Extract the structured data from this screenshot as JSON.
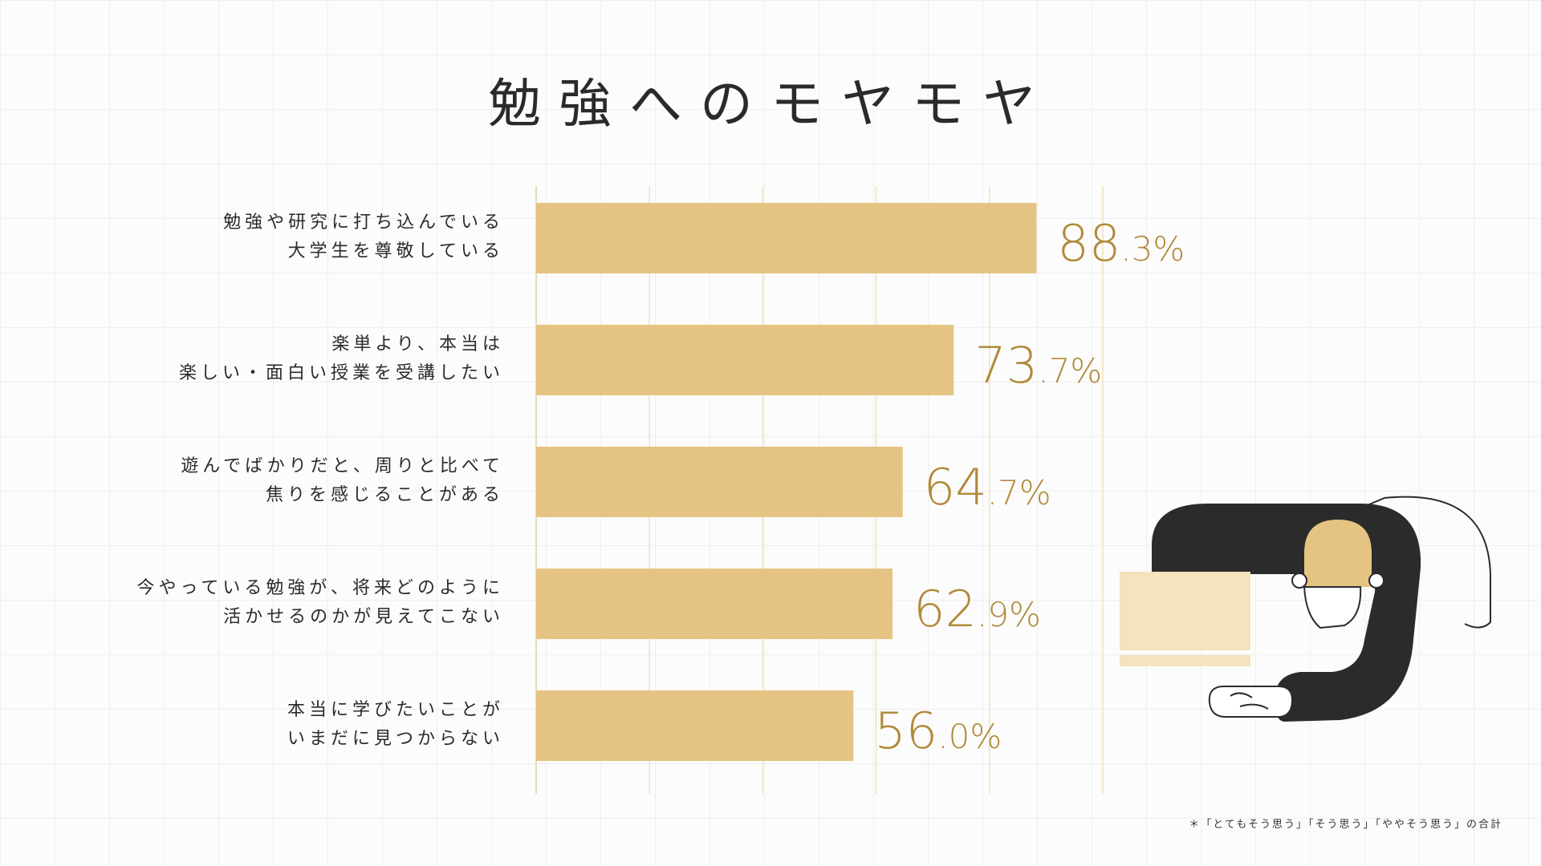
{
  "page": {
    "title": "勉強へのモヤモヤ"
  },
  "footnote": "＊「とてもそう思う」「そう思う」「ややそう思う」の合計",
  "colors": {
    "bar": "#e5c483",
    "value_text": "#b18a3a",
    "gridline": "#efe2c2",
    "dark": "#2b2b2b",
    "light_block": "#f4e3be"
  },
  "chart_data": {
    "type": "bar",
    "orientation": "horizontal",
    "title": "勉強へのモヤモヤ",
    "unit": "%",
    "xlim": [
      0,
      100
    ],
    "categories": [
      [
        "勉強や研究に打ち込んでいる",
        "大学生を尊敬している"
      ],
      [
        "楽単より、本当は",
        "楽しい・面白い授業を受講したい"
      ],
      [
        "遊んでばかりだと、周りと比べて",
        "焦りを感じることがある"
      ],
      [
        "今やっている勉強が、将来どのように",
        "活かせるのかが見えてこない"
      ],
      [
        "本当に学びたいことが",
        "いまだに見つからない"
      ]
    ],
    "values": [
      88.3,
      73.7,
      64.7,
      62.9,
      56.0
    ],
    "value_labels": [
      {
        "int": "88",
        "dec": ".3%"
      },
      {
        "int": "73",
        "dec": ".7%"
      },
      {
        "int": "64",
        "dec": ".7%"
      },
      {
        "int": "62",
        "dec": ".9%"
      },
      {
        "int": "56",
        "dec": ".0%"
      }
    ],
    "grid": true
  },
  "illustration": {
    "icon": "person-at-desk-illustration"
  }
}
